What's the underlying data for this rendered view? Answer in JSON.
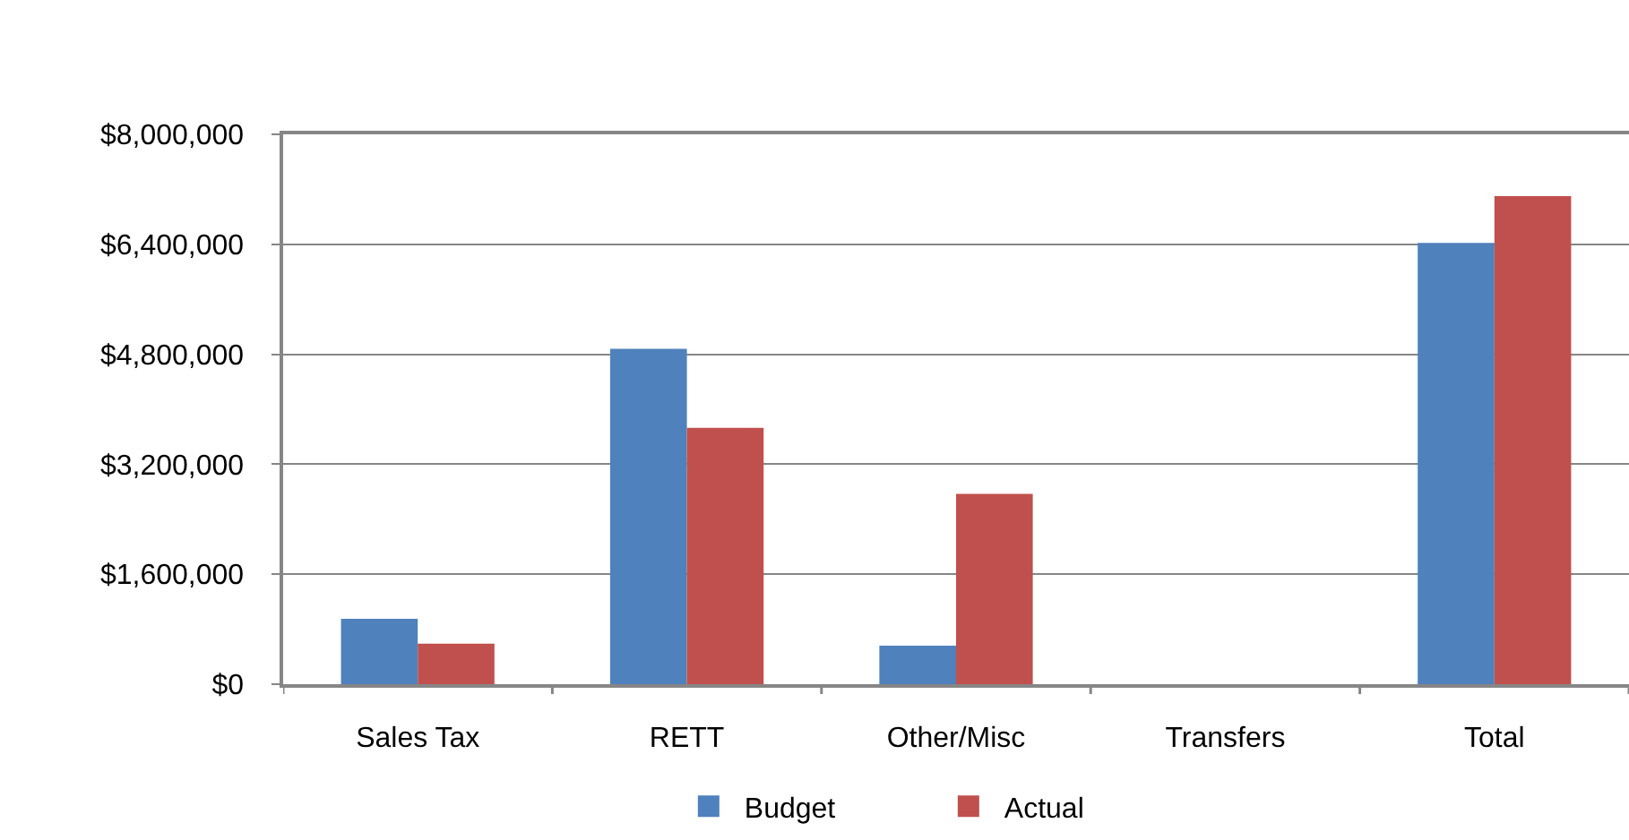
{
  "chart_data": {
    "type": "bar",
    "categories": [
      "Sales Tax",
      "RETT",
      "Other/Misc",
      "Transfers",
      "Total"
    ],
    "series": [
      {
        "name": "Budget",
        "color": "#4f81bd",
        "values": [
          950000,
          4880000,
          560000,
          0,
          6420000
        ]
      },
      {
        "name": "Actual",
        "color": "#c0504d",
        "values": [
          590000,
          3730000,
          2770000,
          0,
          7100000
        ]
      }
    ],
    "ylim": [
      0,
      8000000
    ],
    "yticks": [
      {
        "value": 0,
        "label": "$0"
      },
      {
        "value": 1600000,
        "label": "$1,600,000"
      },
      {
        "value": 3200000,
        "label": "$3,200,000"
      },
      {
        "value": 4800000,
        "label": "$4,800,000"
      },
      {
        "value": 6400000,
        "label": "$6,400,000"
      },
      {
        "value": 8000000,
        "label": "$8,000,000"
      }
    ],
    "grid": "y",
    "legend": "bottom"
  }
}
